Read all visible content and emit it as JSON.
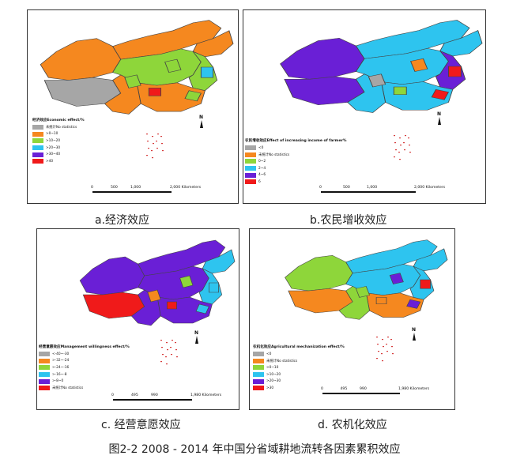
{
  "figure_caption": "图2-2 2008 - 2014 年中国分省域耕地流转各因素累积效应",
  "colors": {
    "gray": "#a6a6a6",
    "orange": "#f5881f",
    "green": "#8ed63a",
    "cyan": "#2ec4ef",
    "purple": "#6a1fd6",
    "red": "#f01a1a"
  },
  "panels": [
    {
      "caption": "a.经济效应",
      "legend_title": "经济效应Economic effect/%",
      "legend": [
        {
          "label": "未统计No statistics",
          "color": "gray"
        },
        {
          "label": ">0~10",
          "color": "orange"
        },
        {
          "label": ">10~20",
          "color": "green"
        },
        {
          "label": ">20~30",
          "color": "cyan"
        },
        {
          "label": ">30~40",
          "color": "purple"
        },
        {
          "label": ">40",
          "color": "red"
        }
      ],
      "scale": [
        "0",
        "500",
        "1,000",
        "2,000 Kilometers"
      ],
      "north": "N",
      "fills": {
        "west": "orange",
        "tibet": "gray",
        "mongolia": "orange",
        "northeast": "orange",
        "center": "green",
        "east": "green",
        "south": "orange",
        "sw": "orange",
        "patch1": "green",
        "patch2": "cyan",
        "patch3": "red",
        "patch4": "green",
        "patch5": "green"
      }
    },
    {
      "caption": "b.农民增收效应",
      "legend_title": "农民增收效应Effect of increasing income of farmer%",
      "legend": [
        {
          "label": "<0",
          "color": "gray"
        },
        {
          "label": "未统计No statistics",
          "color": "orange"
        },
        {
          "label": "0~2",
          "color": "green"
        },
        {
          "label": "2~4",
          "color": "cyan"
        },
        {
          "label": "4~6",
          "color": "purple"
        },
        {
          "label": "6",
          "color": "red"
        }
      ],
      "scale": [
        "0",
        "500",
        "1,000",
        "2,000 Kilometers"
      ],
      "north": "N",
      "fills": {
        "west": "purple",
        "tibet": "purple",
        "mongolia": "cyan",
        "northeast": "cyan",
        "center": "cyan",
        "east": "purple",
        "south": "cyan",
        "sw": "cyan",
        "patch1": "orange",
        "patch2": "red",
        "patch3": "green",
        "patch4": "gray",
        "patch5": "red"
      }
    },
    {
      "caption": "c. 经营意愿效应",
      "legend_title": "经营意愿效应Management willingness effect/%",
      "legend": [
        {
          "label": "<-40~-30",
          "color": "gray"
        },
        {
          "label": ">-32~-24",
          "color": "orange"
        },
        {
          "label": ">-24~-16",
          "color": "green"
        },
        {
          "label": ">-16~-8",
          "color": "cyan"
        },
        {
          "label": ">-8~0",
          "color": "purple"
        },
        {
          "label": "未统计No statistics",
          "color": "red"
        }
      ],
      "scale": [
        "0",
        "495",
        "990",
        "1,980 Kilometers"
      ],
      "north": "N",
      "fills": {
        "west": "purple",
        "tibet": "red",
        "mongolia": "purple",
        "northeast": "cyan",
        "center": "purple",
        "east": "cyan",
        "south": "purple",
        "sw": "purple",
        "patch1": "green",
        "patch2": "cyan",
        "patch3": "red",
        "patch4": "orange",
        "patch5": "cyan"
      }
    },
    {
      "caption": "d. 农机化效应",
      "legend_title": "农机化效应Agricultural mechanization effect/%",
      "legend": [
        {
          "label": "<0",
          "color": "gray"
        },
        {
          "label": "未统计No statistics",
          "color": "orange"
        },
        {
          "label": ">0~10",
          "color": "green"
        },
        {
          "label": ">10~20",
          "color": "cyan"
        },
        {
          "label": ">20~30",
          "color": "purple"
        },
        {
          "label": ">30",
          "color": "red"
        }
      ],
      "scale": [
        "0",
        "495",
        "990",
        "1,980 Kilometers"
      ],
      "north": "N",
      "fills": {
        "west": "green",
        "tibet": "orange",
        "mongolia": "cyan",
        "northeast": "cyan",
        "center": "cyan",
        "east": "cyan",
        "south": "orange",
        "sw": "green",
        "patch1": "purple",
        "patch2": "red",
        "patch3": "orange",
        "patch4": "green",
        "patch5": "purple"
      }
    }
  ]
}
